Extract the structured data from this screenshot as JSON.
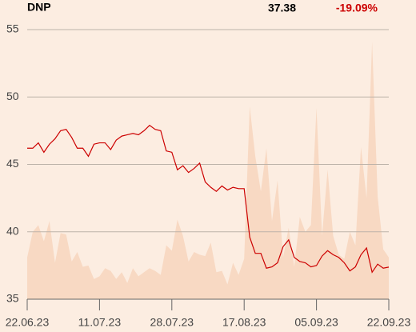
{
  "chart_data": {
    "type": "line",
    "title": "DNP",
    "last_price": "37.38",
    "change": "-19.09%",
    "change_color": "#cc0000",
    "categories": [
      "22.06.23",
      null,
      null,
      null,
      null,
      null,
      null,
      null,
      null,
      null,
      null,
      null,
      null,
      "11.07.23",
      null,
      null,
      null,
      null,
      null,
      null,
      null,
      null,
      null,
      null,
      null,
      null,
      "28.07.23",
      null,
      null,
      null,
      null,
      null,
      null,
      null,
      null,
      null,
      null,
      null,
      null,
      "17.08.23",
      null,
      null,
      null,
      null,
      null,
      null,
      null,
      null,
      null,
      null,
      null,
      null,
      "05.09.23",
      null,
      null,
      null,
      null,
      null,
      null,
      null,
      null,
      null,
      null,
      null,
      null,
      "22.09.23"
    ],
    "series": [
      {
        "type": "area",
        "color": "#f8d9c3",
        "values": [
          38.1,
          40.0,
          40.5,
          39.3,
          40.8,
          37.7,
          39.9,
          39.8,
          37.8,
          38.5,
          37.4,
          37.5,
          36.5,
          36.7,
          37.3,
          37.1,
          36.5,
          37.0,
          36.2,
          37.3,
          36.7,
          37.0,
          37.3,
          37.1,
          36.8,
          39.0,
          38.6,
          40.9,
          39.7,
          37.8,
          38.5,
          38.3,
          38.2,
          39.2,
          37.0,
          37.1,
          36.1,
          37.7,
          36.8,
          38.0,
          49.3,
          45.6,
          43.0,
          46.2,
          40.8,
          43.8,
          38.1,
          40.3,
          37.4,
          41.1,
          40.0,
          40.5,
          49.2,
          39.7,
          44.6,
          39.7,
          38.3,
          38.0,
          40.0,
          39.0,
          46.3,
          42.5,
          54.1,
          42.6,
          38.7,
          38.1
        ]
      },
      {
        "type": "line",
        "color": "#cc0000",
        "values": [
          46.2,
          46.2,
          46.6,
          45.9,
          46.5,
          46.9,
          47.5,
          47.6,
          47.0,
          46.2,
          46.2,
          45.6,
          46.5,
          46.6,
          46.6,
          46.1,
          46.8,
          47.1,
          47.2,
          47.3,
          47.2,
          47.5,
          47.9,
          47.6,
          47.5,
          46.0,
          45.9,
          44.6,
          44.9,
          44.4,
          44.7,
          45.1,
          43.7,
          43.3,
          43.0,
          43.4,
          43.1,
          43.3,
          43.2,
          43.2,
          39.6,
          38.4,
          38.4,
          37.3,
          37.4,
          37.7,
          38.9,
          39.4,
          38.1,
          37.8,
          37.7,
          37.4,
          37.5,
          38.2,
          38.6,
          38.3,
          38.1,
          37.7,
          37.1,
          37.4,
          38.3,
          38.8,
          37.0,
          37.6,
          37.3,
          37.38
        ]
      }
    ],
    "ylim": [
      35,
      55
    ],
    "yticks": [
      35,
      40,
      45,
      50,
      55
    ],
    "grid": true
  }
}
